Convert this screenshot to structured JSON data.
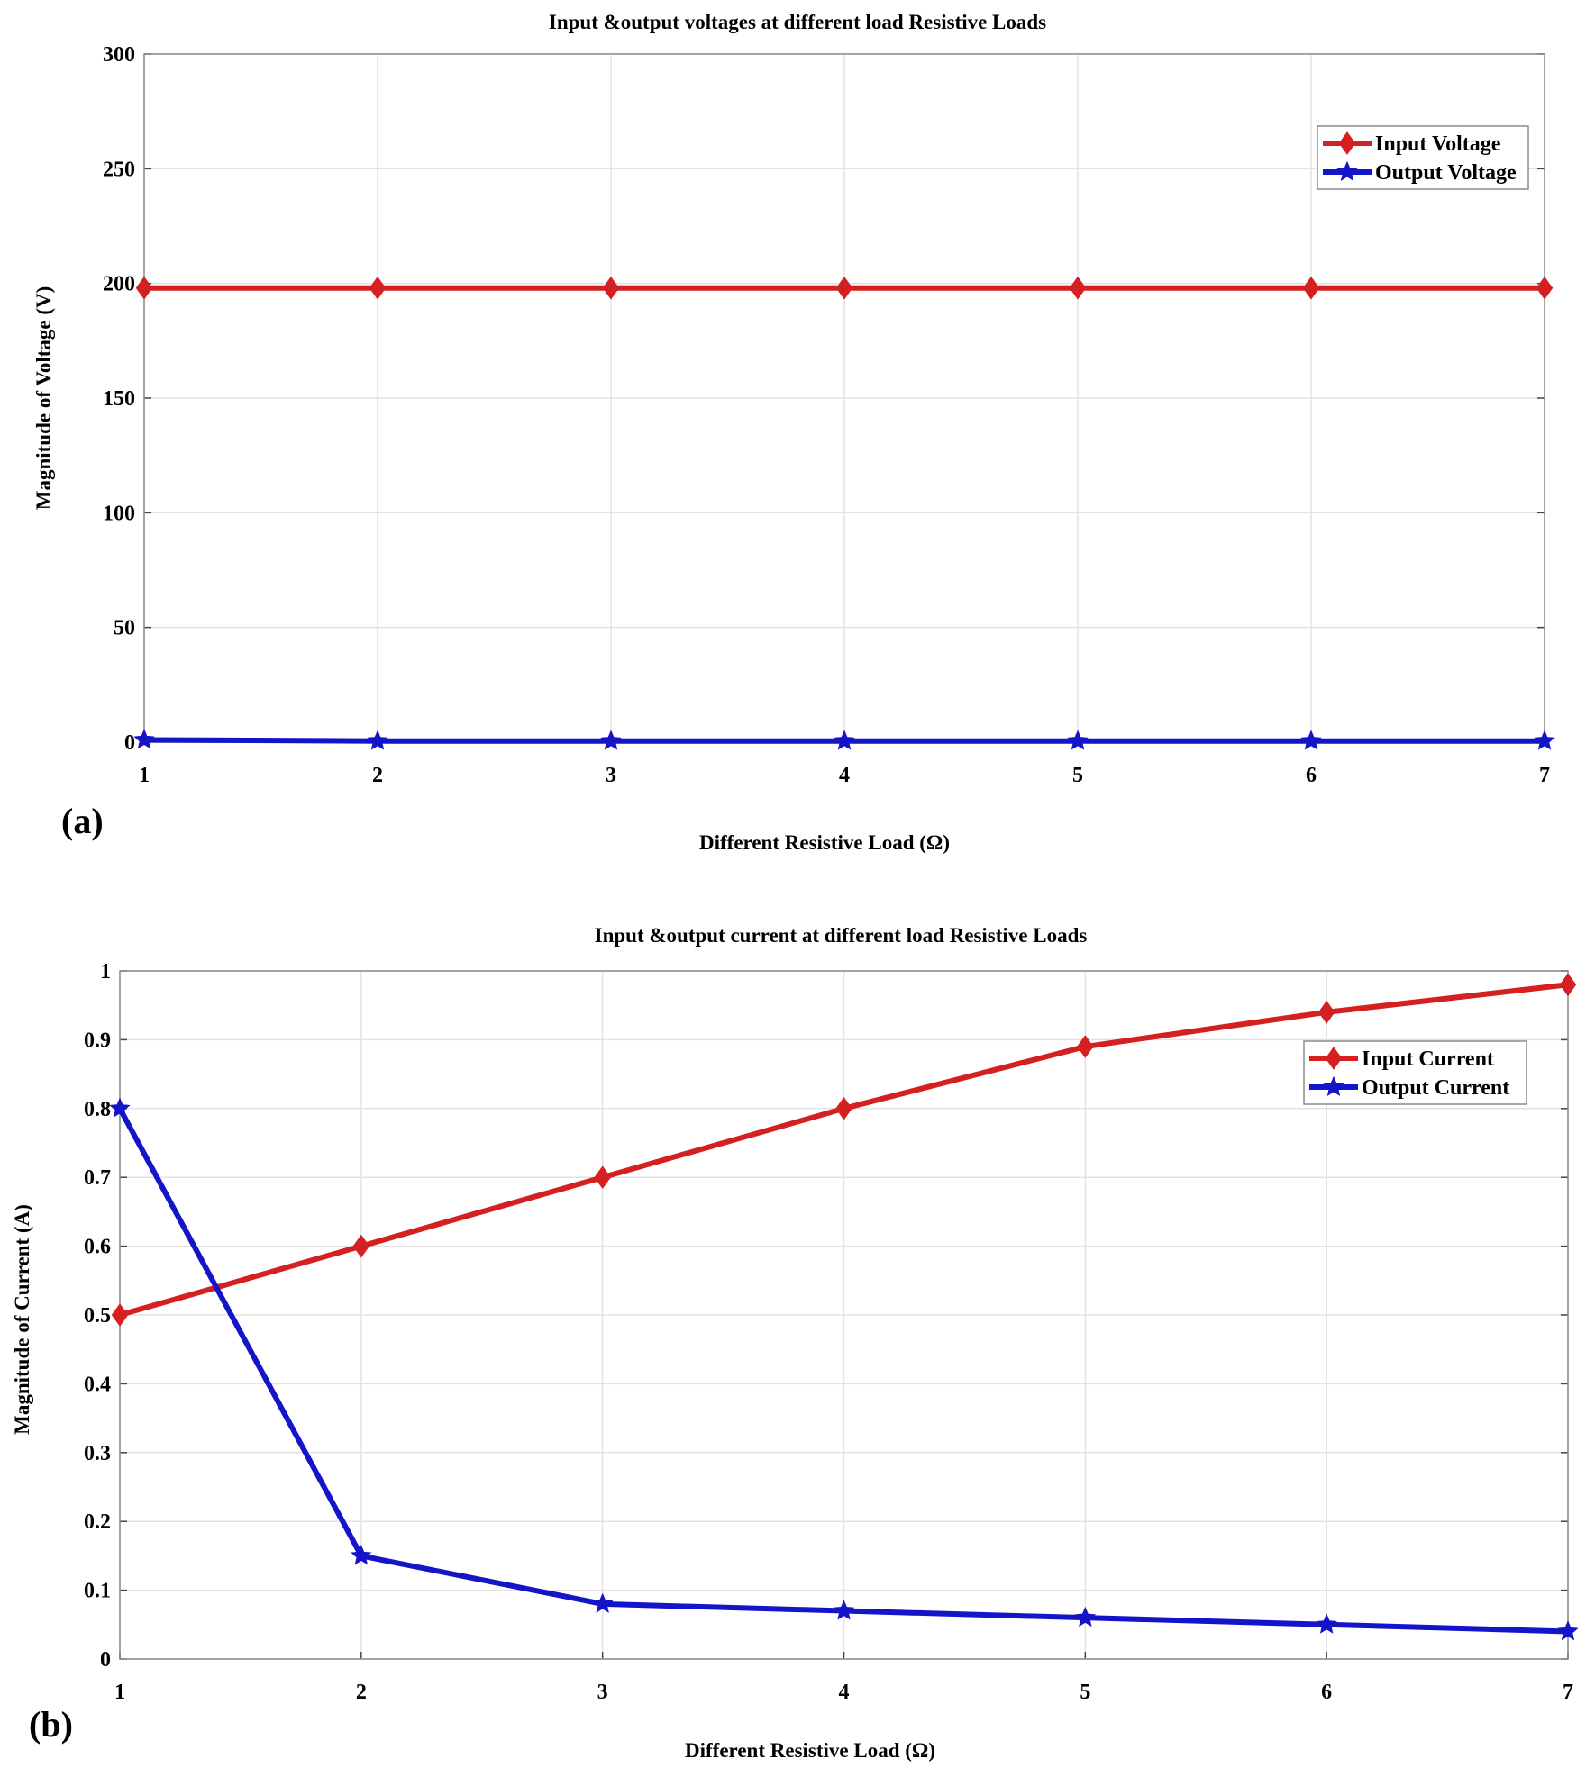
{
  "chart_data": [
    {
      "type": "line",
      "panel_label": "(a)",
      "title": "Input &output voltages at different load Resistive Loads",
      "xlabel": "Different Resistive Load (Ω)",
      "ylabel": "Magnitude of Voltage (V)",
      "x": [
        1,
        2,
        3,
        4,
        5,
        6,
        7
      ],
      "xlim": [
        1,
        7
      ],
      "ylim": [
        0,
        300
      ],
      "xticks": [
        "1",
        "2",
        "3",
        "4",
        "5",
        "6",
        "7"
      ],
      "yticks": [
        "0",
        "50",
        "100",
        "150",
        "200",
        "250",
        "300"
      ],
      "grid": true,
      "legend_position": "top-right",
      "series": [
        {
          "name": "Input Voltage",
          "color": "#d42020",
          "marker": "diamond",
          "values": [
            198,
            198,
            198,
            198,
            198,
            198,
            198
          ]
        },
        {
          "name": "Output Voltage",
          "color": "#1414c8",
          "marker": "star",
          "values": [
            1,
            0.5,
            0.5,
            0.5,
            0.5,
            0.5,
            0.5
          ]
        }
      ]
    },
    {
      "type": "line",
      "panel_label": "(b)",
      "title": "Input &output current at different load Resistive Loads",
      "xlabel": "Different Resistive Load (Ω)",
      "ylabel": "Magnitude of Current (A)",
      "x": [
        1,
        2,
        3,
        4,
        5,
        6,
        7
      ],
      "xlim": [
        1,
        7
      ],
      "ylim": [
        0,
        1
      ],
      "xticks": [
        "1",
        "2",
        "3",
        "4",
        "5",
        "6",
        "7"
      ],
      "yticks": [
        "0",
        "0.1",
        "0.2",
        "0.3",
        "0.4",
        "0.5",
        "0.6",
        "0.7",
        "0.8",
        "0.9",
        "1"
      ],
      "grid": true,
      "legend_position": "top-right",
      "series": [
        {
          "name": "Input Current",
          "color": "#d42020",
          "marker": "diamond",
          "values": [
            0.5,
            0.6,
            0.7,
            0.8,
            0.89,
            0.94,
            0.98
          ]
        },
        {
          "name": "Output Current",
          "color": "#1414c8",
          "marker": "star",
          "values": [
            0.8,
            0.15,
            0.08,
            0.07,
            0.06,
            0.05,
            0.04
          ]
        }
      ]
    }
  ]
}
